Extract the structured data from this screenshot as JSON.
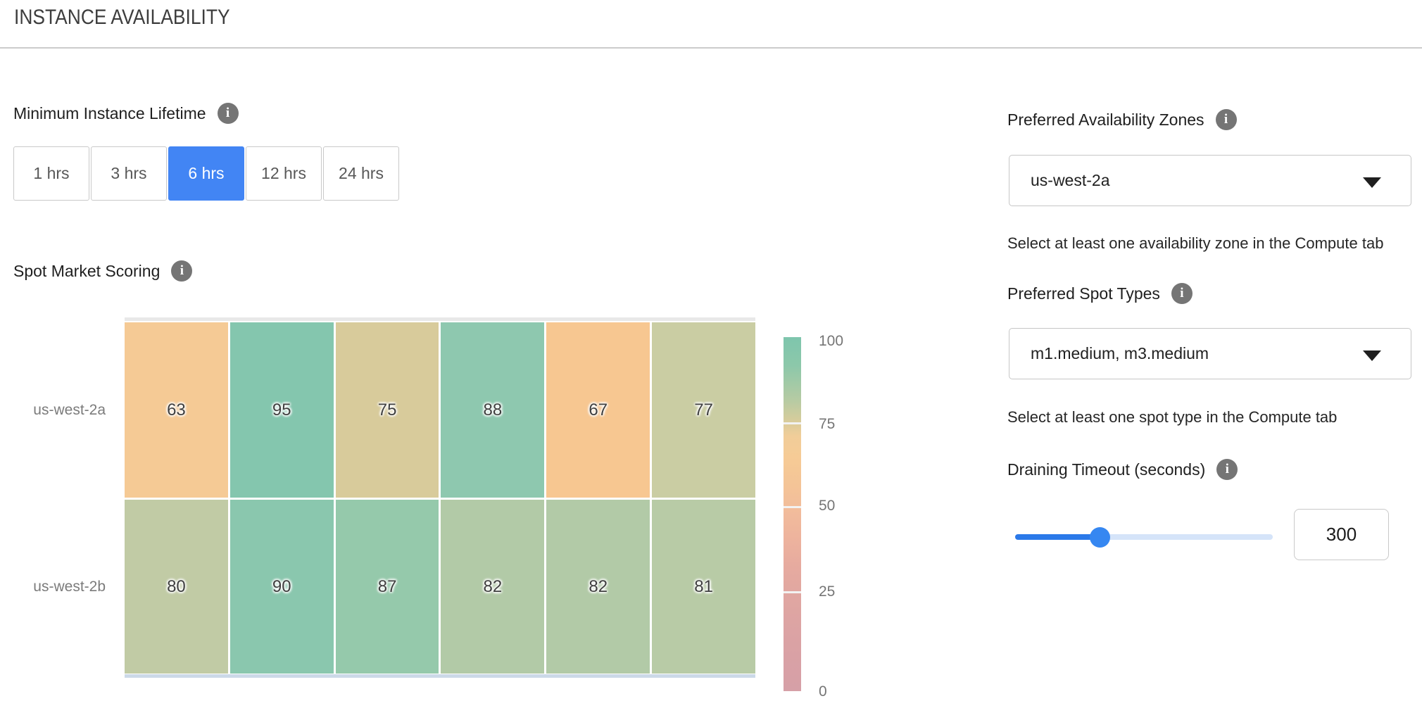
{
  "title": "INSTANCE AVAILABILITY",
  "lifetime": {
    "label": "Minimum Instance Lifetime",
    "selected_color": "#4285f4",
    "options": [
      {
        "label": "1 hrs",
        "selected": false
      },
      {
        "label": "3 hrs",
        "selected": false
      },
      {
        "label": "6 hrs",
        "selected": true
      },
      {
        "label": "12 hrs",
        "selected": false
      },
      {
        "label": "24 hrs",
        "selected": false
      }
    ]
  },
  "scoring": {
    "label": "Spot Market Scoring"
  },
  "chart_data": {
    "type": "heatmap",
    "title": "Spot Market Scoring",
    "rows": [
      "us-west-2a",
      "us-west-2b"
    ],
    "values": [
      [
        63,
        95,
        75,
        88,
        67,
        77
      ],
      [
        80,
        90,
        87,
        82,
        82,
        81
      ]
    ],
    "cell_colors": [
      [
        "#f5ca95",
        "#84c6ae",
        "#d8cb9b",
        "#8ec8af",
        "#f7c791",
        "#cacda3"
      ],
      [
        "#c1cba5",
        "#8ac7ae",
        "#95c9ab",
        "#b2caa7",
        "#b2caa7",
        "#b8cba6"
      ]
    ],
    "value_range": [
      0,
      100
    ],
    "colorbar": {
      "ticks": [
        100,
        75,
        50,
        25,
        0
      ],
      "high_color": "#7ec5ad",
      "mid_color": "#f6cb96",
      "low_color": "#d6a0a7",
      "position": "right"
    },
    "grid": false,
    "legend_position": "right"
  },
  "zones": {
    "label": "Preferred Availability Zones",
    "value": "us-west-2a",
    "helper": "Select at least one availability zone in the Compute tab"
  },
  "spot_types": {
    "label": "Preferred Spot Types",
    "value": "m1.medium, m3.medium",
    "helper": "Select at least one spot type in the Compute tab"
  },
  "draining": {
    "label": "Draining Timeout (seconds)",
    "value": "300",
    "slider_fill_percent": 33
  },
  "icons": {
    "info": "i",
    "dropdown_caret": "caret-down"
  }
}
